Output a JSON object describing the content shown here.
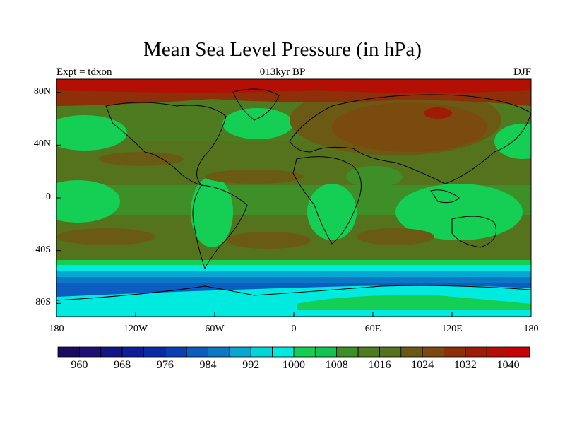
{
  "header": {
    "title": "Mean Sea Level Pressure (in hPa)",
    "left": "Expt = tdxon",
    "center": "013kyr BP",
    "right": "DJF"
  },
  "axes": {
    "lat_ticks": [
      "80N",
      "40N",
      "0",
      "40S",
      "80S"
    ],
    "lon_ticks": [
      "180",
      "120W",
      "60W",
      "0",
      "60E",
      "120E",
      "180"
    ]
  },
  "colorbar": {
    "colors": [
      "#1c0a60",
      "#1d0f76",
      "#14148a",
      "#0e1e99",
      "#082aa6",
      "#0a3fb4",
      "#0b5dbf",
      "#0b78c6",
      "#06a6d3",
      "#00d5d8",
      "#00eadf",
      "#15cf55",
      "#12c452",
      "#3f8f28",
      "#4e7b20",
      "#55731c",
      "#6b5a13",
      "#7b4a0f",
      "#8d300a",
      "#9e1c06",
      "#b30f04",
      "#c80303"
    ],
    "labels": [
      "960",
      "968",
      "976",
      "984",
      "992",
      "1000",
      "1008",
      "1016",
      "1024",
      "1032",
      "1040"
    ]
  }
}
